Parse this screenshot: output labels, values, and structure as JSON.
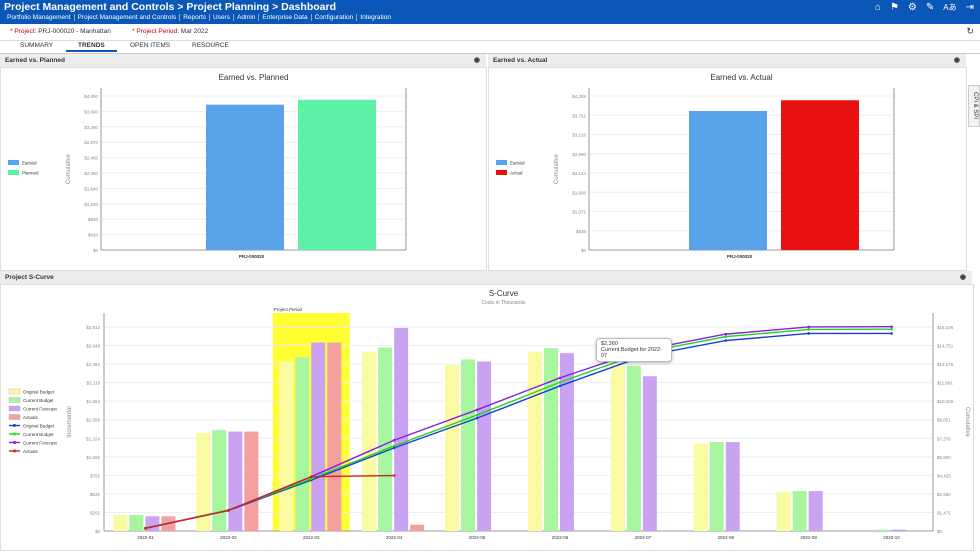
{
  "header": {
    "title": "Project Management and Controls > Project Planning > Dashboard",
    "menu": [
      "Portfolio Management",
      "Project Management and Controls",
      "Reports",
      "Users",
      "Admin",
      "Enterprise Data",
      "Configuration",
      "Integration"
    ],
    "icons": [
      "home-icon",
      "flag-icon",
      "gear-icon",
      "wrench-icon",
      "font-size-icon",
      "logout-icon"
    ]
  },
  "project_bar": {
    "project_label": "* Project:",
    "project_value": "PRJ-000020 - Manhattan",
    "period_label": "* Project Period:",
    "period_value": "Mar 2022"
  },
  "tabs": [
    "SUMMARY",
    "TRENDS",
    "OPEN ITEMS",
    "RESOURCE"
  ],
  "active_tab": "TRENDS",
  "side_tab": "CPI & SPI",
  "panels": {
    "earned_planned": "Earned vs. Planned",
    "earned_actual": "Earned vs. Actual",
    "scurve": "Project S-Curve"
  },
  "tooltip": {
    "value": "$2,360",
    "label": "Current Budget for 2022-07"
  },
  "chart_data": [
    {
      "type": "bar",
      "title": "Earned vs. Planned",
      "ylabel": "Cumulative",
      "categories": [
        "PRJ-000020"
      ],
      "series": [
        {
          "name": "Earned",
          "values": [
            3870
          ],
          "color": "#5aa3ea"
        },
        {
          "name": "Planned",
          "values": [
            4000
          ],
          "color": "#5ff0a8"
        }
      ],
      "yticks": [
        "$0",
        "$410",
        "$820",
        "$1,230",
        "$1,640",
        "$2,050",
        "$2,460",
        "$2,870",
        "$3,280",
        "$3,690",
        "$4,000"
      ],
      "ylim": [
        0,
        4100
      ]
    },
    {
      "type": "bar",
      "title": "Earned vs. Actual",
      "ylabel": "Cumulative",
      "categories": [
        "PRJ-000020"
      ],
      "series": [
        {
          "name": "Earned",
          "values": [
            3870
          ],
          "color": "#5aa3ea"
        },
        {
          "name": "Actual",
          "values": [
            4170
          ],
          "color": "#e81010"
        }
      ],
      "yticks": [
        "$0",
        "$536",
        "$1,072",
        "$1,608",
        "$2,144",
        "$2,680",
        "$3,216",
        "$3,752",
        "$4,288"
      ],
      "ylim": [
        0,
        4288
      ]
    },
    {
      "type": "bar",
      "title": "S-Curve",
      "subtitle": "Costs in Thousands",
      "ylabel": "Incremental",
      "y2label": "Cumulative",
      "annotation": "Project Period",
      "categories": [
        "2022-01",
        "2022-02",
        "2022-03",
        "2022-04",
        "2022-05",
        "2022-06",
        "2022-07",
        "2022-08",
        "2022-09",
        "2022-10"
      ],
      "yticks": [
        "$0",
        "$265",
        "$530",
        "$795",
        "$1,060",
        "$1,324",
        "$1,589",
        "$1,854",
        "$2,119",
        "$2,384",
        "$2,649",
        "$2,913"
      ],
      "y2ticks": [
        "$0",
        "$1,475",
        "$2,950",
        "$4,425",
        "$5,900",
        "$7,376",
        "$8,851",
        "$10,326",
        "$11,801",
        "$13,276",
        "$14,751",
        "$16,226"
      ],
      "ylim": [
        0,
        3200
      ],
      "y2lim": [
        0,
        17700
      ],
      "series": [
        {
          "name": "Original Budget",
          "kind": "bar",
          "color": "#fafaa0",
          "values": [
            230,
            1400,
            2420,
            2560,
            2370,
            2560,
            2360,
            1250,
            560,
            0
          ]
        },
        {
          "name": "Current Budget",
          "kind": "bar",
          "color": "#a8f5a0",
          "values": [
            230,
            1440,
            2480,
            2620,
            2450,
            2610,
            2360,
            1270,
            570,
            20
          ]
        },
        {
          "name": "Current Forecast",
          "kind": "bar",
          "color": "#c9a3f2",
          "values": [
            210,
            1420,
            2690,
            2900,
            2420,
            2540,
            2210,
            1270,
            570,
            20
          ]
        },
        {
          "name": "Actuals",
          "kind": "bar",
          "color": "#f5a0a0",
          "values": [
            210,
            1420,
            2690,
            90,
            0,
            0,
            0,
            0,
            0,
            0
          ]
        },
        {
          "name": "Original Budget",
          "kind": "line",
          "color": "#1a3bd6",
          "values": [
            230,
            1630,
            4050,
            6610,
            8980,
            11540,
            13900,
            15150,
            15710,
            15710
          ]
        },
        {
          "name": "Current Budget",
          "kind": "line",
          "color": "#27d327",
          "values": [
            230,
            1670,
            4150,
            6770,
            9220,
            11830,
            14190,
            15460,
            16030,
            16050
          ]
        },
        {
          "name": "Current Forecast",
          "kind": "line",
          "color": "#8a1ee0",
          "values": [
            210,
            1630,
            4320,
            7220,
            9640,
            12180,
            14390,
            15660,
            16230,
            16250
          ]
        },
        {
          "name": "Actuals",
          "kind": "line",
          "color": "#d22020",
          "values": [
            210,
            1630,
            4320,
            4410,
            null,
            null,
            null,
            null,
            null,
            null
          ]
        }
      ]
    }
  ]
}
